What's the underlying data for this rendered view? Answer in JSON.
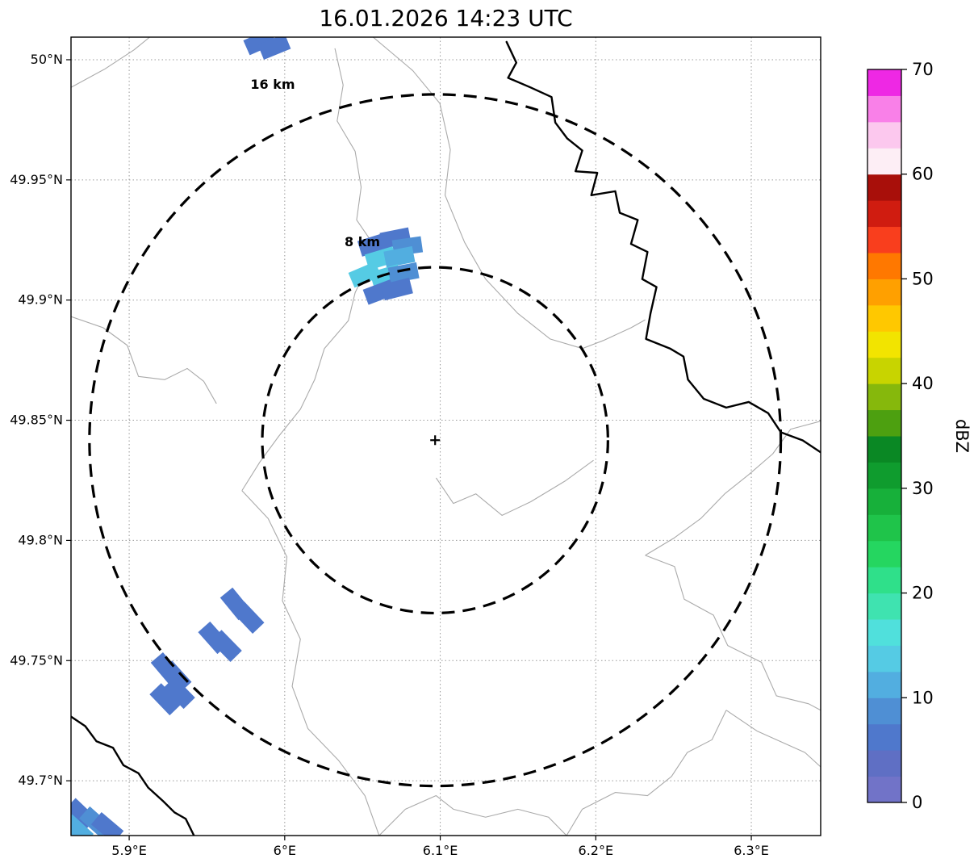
{
  "chart_data": {
    "type": "heatmap",
    "subtype": "radar-reflectivity-ppi-map",
    "title": "16.01.2026 14:23 UTC",
    "xlabel": "",
    "ylabel": "",
    "grid": true,
    "x_axis": {
      "ticks": [
        5.9,
        6.0,
        6.1,
        6.2,
        6.3
      ],
      "tick_labels": [
        "5.9°E",
        "6°E",
        "6.1°E",
        "6.2°E",
        "6.3°E"
      ],
      "range": [
        5.8626,
        6.3446
      ]
    },
    "y_axis": {
      "ticks": [
        50.0,
        49.95,
        49.9,
        49.85,
        49.8,
        49.75,
        49.7
      ],
      "tick_labels": [
        "50°N",
        "49.95°N",
        "49.9°N",
        "49.85°N",
        "49.8°N",
        "49.75°N",
        "49.7°N"
      ],
      "range": [
        49.6772,
        50.0094
      ]
    },
    "radar_site": {
      "lon": 6.0967,
      "lat": 49.8417,
      "marker": "+"
    },
    "range_rings": [
      {
        "radius_km": 8,
        "label": "8 km",
        "label_lon": 6.0499,
        "label_lat": 49.9224
      },
      {
        "radius_km": 16,
        "label": "16 km",
        "label_lon": 5.9923,
        "label_lat": 49.9879
      }
    ],
    "colorbar": {
      "label": "dBZ",
      "min": 0,
      "max": 70,
      "ticks": [
        0,
        10,
        20,
        30,
        40,
        50,
        60,
        70
      ],
      "segment_step": 2.5,
      "colors": [
        "#7173c8",
        "#5f6fc4",
        "#4f78cc",
        "#4f8fd4",
        "#52aee0",
        "#55cbe4",
        "#50e0dc",
        "#3fe3b0",
        "#2fe08a",
        "#25d660",
        "#1fc44a",
        "#17b03a",
        "#0f9c2e",
        "#0a8824",
        "#4da010",
        "#86b80c",
        "#c8d400",
        "#f2e400",
        "#ffc800",
        "#ffa000",
        "#ff7800",
        "#f93e1d",
        "#d01c10",
        "#a80f0a",
        "#fdeef5",
        "#fcc8ee",
        "#f980e8",
        "#ee28e4"
      ]
    },
    "echo_cells": {
      "cell_w_deg": 0.0187,
      "cell_h_deg": 0.0067,
      "cells": [
        {
          "lon": 6.0712,
          "lat": 49.9258,
          "dbz": 6
        },
        {
          "lon": 6.0572,
          "lat": 49.9231,
          "dbz": 5
        },
        {
          "lon": 6.0789,
          "lat": 49.9224,
          "dbz": 9
        },
        {
          "lon": 6.0618,
          "lat": 49.9174,
          "dbz": 13
        },
        {
          "lon": 6.0737,
          "lat": 49.918,
          "dbz": 12
        },
        {
          "lon": 6.0515,
          "lat": 49.9106,
          "dbz": 14
        },
        {
          "lon": 6.065,
          "lat": 49.91,
          "dbz": 13
        },
        {
          "lon": 6.0764,
          "lat": 49.9113,
          "dbz": 8
        },
        {
          "lon": 6.0608,
          "lat": 49.9033,
          "dbz": 5
        },
        {
          "lon": 6.0722,
          "lat": 49.9046,
          "dbz": 7
        },
        {
          "lon": 5.984,
          "lat": 50.0074,
          "dbz": 6
        },
        {
          "lon": 5.9933,
          "lat": 50.0054,
          "dbz": 5
        },
        {
          "lon": 5.9767,
          "lat": 49.7679,
          "dbz": 6
        },
        {
          "lon": 5.9684,
          "lat": 49.7736,
          "dbz": 5
        },
        {
          "lon": 5.9544,
          "lat": 49.7595,
          "dbz": 6
        },
        {
          "lon": 5.9622,
          "lat": 49.7561,
          "dbz": 7
        },
        {
          "lon": 5.9238,
          "lat": 49.7467,
          "dbz": 5
        },
        {
          "lon": 5.93,
          "lat": 49.7433,
          "dbz": 7
        },
        {
          "lon": 5.9233,
          "lat": 49.7339,
          "dbz": 6
        },
        {
          "lon": 5.9321,
          "lat": 49.7366,
          "dbz": 5
        },
        {
          "lon": 5.8688,
          "lat": 49.6862,
          "dbz": 6
        },
        {
          "lon": 5.8782,
          "lat": 49.6828,
          "dbz": 8
        },
        {
          "lon": 5.886,
          "lat": 49.6805,
          "dbz": 5
        },
        {
          "lon": 5.8668,
          "lat": 49.6795,
          "dbz": 10
        }
      ]
    },
    "map_layers": {
      "borders_color": "#aaaaaa",
      "rivers_color": "#000000",
      "rivers": [
        [
          [
            0.581,
            0.006
          ],
          [
            0.594,
            0.032
          ],
          [
            0.583,
            0.051
          ],
          [
            0.613,
            0.063
          ],
          [
            0.641,
            0.075
          ],
          [
            0.646,
            0.107
          ],
          [
            0.662,
            0.127
          ],
          [
            0.682,
            0.142
          ],
          [
            0.673,
            0.168
          ],
          [
            0.702,
            0.17
          ],
          [
            0.694,
            0.198
          ],
          [
            0.726,
            0.193
          ],
          [
            0.732,
            0.22
          ],
          [
            0.756,
            0.229
          ],
          [
            0.747,
            0.259
          ],
          [
            0.769,
            0.269
          ],
          [
            0.762,
            0.303
          ],
          [
            0.781,
            0.313
          ],
          [
            0.773,
            0.346
          ],
          [
            0.767,
            0.378
          ],
          [
            0.799,
            0.39
          ],
          [
            0.817,
            0.4
          ],
          [
            0.823,
            0.429
          ],
          [
            0.844,
            0.453
          ],
          [
            0.874,
            0.464
          ],
          [
            0.904,
            0.457
          ],
          [
            0.93,
            0.471
          ],
          [
            0.947,
            0.495
          ],
          [
            0.976,
            0.505
          ],
          [
            1.0,
            0.52
          ]
        ],
        [
          [
            0.0,
            0.851
          ],
          [
            0.019,
            0.863
          ],
          [
            0.034,
            0.882
          ],
          [
            0.056,
            0.89
          ],
          [
            0.07,
            0.912
          ],
          [
            0.09,
            0.922
          ],
          [
            0.103,
            0.94
          ],
          [
            0.123,
            0.957
          ],
          [
            0.138,
            0.971
          ],
          [
            0.153,
            0.979
          ],
          [
            0.164,
            1.0
          ]
        ]
      ],
      "borders": [
        [
          [
            0.352,
            0.014
          ],
          [
            0.363,
            0.06
          ],
          [
            0.355,
            0.105
          ],
          [
            0.379,
            0.143
          ],
          [
            0.387,
            0.188
          ],
          [
            0.381,
            0.229
          ],
          [
            0.403,
            0.259
          ],
          [
            0.395,
            0.289
          ],
          [
            0.379,
            0.32
          ],
          [
            0.37,
            0.355
          ],
          [
            0.338,
            0.39
          ],
          [
            0.325,
            0.429
          ],
          [
            0.306,
            0.466
          ],
          [
            0.277,
            0.5
          ],
          [
            0.252,
            0.532
          ],
          [
            0.228,
            0.568
          ]
        ],
        [
          [
            0.403,
            0.0
          ],
          [
            0.456,
            0.042
          ],
          [
            0.492,
            0.083
          ],
          [
            0.506,
            0.141
          ],
          [
            0.499,
            0.198
          ],
          [
            0.525,
            0.257
          ],
          [
            0.553,
            0.303
          ],
          [
            0.596,
            0.346
          ],
          [
            0.639,
            0.378
          ],
          [
            0.682,
            0.39
          ],
          [
            0.71,
            0.38
          ],
          [
            0.747,
            0.364
          ],
          [
            0.766,
            0.354
          ]
        ],
        [
          [
            0.0,
            0.35
          ],
          [
            0.043,
            0.364
          ],
          [
            0.075,
            0.386
          ],
          [
            0.09,
            0.425
          ],
          [
            0.125,
            0.429
          ],
          [
            0.155,
            0.415
          ],
          [
            0.177,
            0.431
          ],
          [
            0.194,
            0.459
          ]
        ],
        [
          [
            0.228,
            0.568
          ],
          [
            0.263,
            0.603
          ],
          [
            0.288,
            0.651
          ],
          [
            0.282,
            0.706
          ],
          [
            0.306,
            0.754
          ],
          [
            0.295,
            0.813
          ],
          [
            0.316,
            0.866
          ],
          [
            0.357,
            0.906
          ],
          [
            0.392,
            0.95
          ],
          [
            0.411,
            1.0
          ]
        ],
        [
          [
            0.487,
            0.552
          ],
          [
            0.51,
            0.584
          ],
          [
            0.54,
            0.572
          ],
          [
            0.575,
            0.599
          ],
          [
            0.613,
            0.582
          ],
          [
            0.659,
            0.556
          ],
          [
            0.697,
            0.53
          ]
        ],
        [
          [
            0.766,
            0.649
          ],
          [
            0.805,
            0.663
          ],
          [
            0.818,
            0.704
          ],
          [
            0.857,
            0.724
          ],
          [
            0.876,
            0.762
          ],
          [
            0.921,
            0.783
          ],
          [
            0.941,
            0.825
          ],
          [
            0.984,
            0.835
          ],
          [
            1.0,
            0.843
          ]
        ],
        [
          [
            1.0,
            0.481
          ],
          [
            0.96,
            0.491
          ],
          [
            0.936,
            0.522
          ],
          [
            0.904,
            0.548
          ],
          [
            0.872,
            0.572
          ],
          [
            0.84,
            0.603
          ],
          [
            0.805,
            0.627
          ],
          [
            0.766,
            0.649
          ]
        ],
        [
          [
            0.411,
            1.0
          ],
          [
            0.446,
            0.967
          ],
          [
            0.487,
            0.95
          ],
          [
            0.51,
            0.967
          ],
          [
            0.553,
            0.977
          ],
          [
            0.596,
            0.967
          ],
          [
            0.637,
            0.977
          ],
          [
            0.661,
            1.0
          ]
        ],
        [
          [
            0.661,
            1.0
          ],
          [
            0.682,
            0.967
          ],
          [
            0.726,
            0.946
          ],
          [
            0.769,
            0.95
          ],
          [
            0.801,
            0.926
          ],
          [
            0.822,
            0.896
          ],
          [
            0.855,
            0.88
          ],
          [
            0.874,
            0.843
          ]
        ],
        [
          [
            0.0,
            0.063
          ],
          [
            0.045,
            0.04
          ],
          [
            0.084,
            0.016
          ],
          [
            0.105,
            0.0
          ]
        ],
        [
          [
            0.874,
            0.843
          ],
          [
            0.915,
            0.869
          ],
          [
            0.979,
            0.896
          ],
          [
            1.0,
            0.914
          ]
        ]
      ]
    }
  }
}
